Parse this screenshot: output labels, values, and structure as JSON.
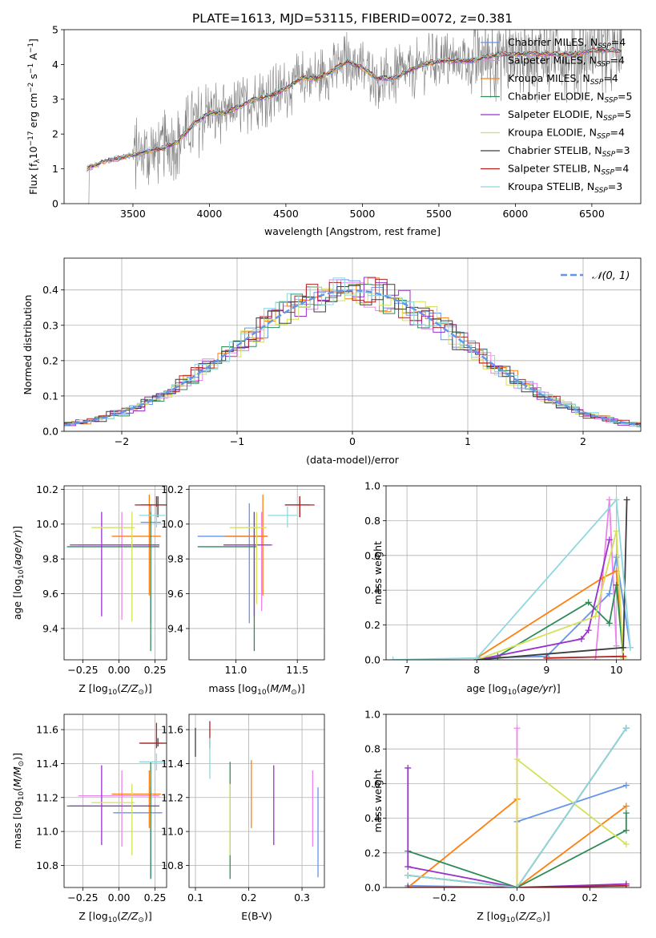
{
  "figure_title": "PLATE=1613, MJD=53115, FIBERID=0072, z=0.381",
  "chart_data": [
    {
      "id": "spectrum",
      "type": "line",
      "xlabel": "wavelength [Angstrom, rest frame]",
      "ylabel": "Flux [f_λ10^-17 erg cm^-2 s^-1 A^-1]",
      "xlim": [
        3050,
        6820
      ],
      "ylim": [
        0,
        5
      ],
      "xticks": [
        3500,
        4000,
        4500,
        5000,
        5500,
        6000,
        6500
      ],
      "yticks": [
        0,
        1,
        2,
        3,
        4,
        5
      ],
      "grid": false,
      "legend_position": "top-right",
      "legend": [
        {
          "label": "Chabrier MILES, N_SSP=4",
          "color": "#6495ed"
        },
        {
          "label": "Salpeter MILES, N_SSP=4",
          "color": "#ee82ee"
        },
        {
          "label": "Kroupa MILES, N_SSP=4",
          "color": "#ff7f0e"
        },
        {
          "label": "Chabrier ELODIE, N_SSP=5",
          "color": "#2e8b57"
        },
        {
          "label": "Salpeter ELODIE, N_SSP=5",
          "color": "#9932cc"
        },
        {
          "label": "Kroupa ELODIE, N_SSP=4",
          "color": "#d4e157"
        },
        {
          "label": "Chabrier STELIB, N_SSP=3",
          "color": "#3d3d3d"
        },
        {
          "label": "Salpeter STELIB, N_SSP=4",
          "color": "#b22222"
        },
        {
          "label": "Kroupa STELIB, N_SSP=3",
          "color": "#8fd8e0"
        }
      ],
      "data_envelope": {
        "x": [
          3200,
          3300,
          3400,
          3500,
          3600,
          3700,
          3800,
          3900,
          4000,
          4100,
          4200,
          4300,
          4400,
          4500,
          4600,
          4700,
          4800,
          4900,
          5000,
          5100,
          5200,
          5300,
          5400,
          5500,
          5600,
          5700,
          5800,
          5900,
          6000,
          6100,
          6200,
          6300,
          6400,
          6500,
          6600,
          6700
        ],
        "y": [
          1.0,
          1.2,
          1.3,
          1.4,
          1.5,
          1.6,
          1.8,
          2.3,
          2.6,
          2.6,
          2.8,
          3.0,
          3.1,
          3.3,
          3.6,
          3.6,
          3.8,
          4.1,
          3.9,
          3.6,
          3.6,
          3.8,
          4.0,
          4.1,
          4.1,
          4.1,
          4.2,
          4.3,
          4.3,
          4.3,
          4.3,
          4.3,
          4.3,
          4.4,
          4.4,
          4.4
        ]
      }
    },
    {
      "id": "residuals",
      "type": "histogram",
      "xlabel": "(data-model)/error",
      "ylabel": "Normed distribution",
      "xlim": [
        -2.5,
        2.5
      ],
      "ylim": [
        0,
        0.49
      ],
      "xticks": [
        -2,
        -1,
        0,
        1,
        2
      ],
      "yticks": [
        0.0,
        0.1,
        0.2,
        0.3,
        0.4
      ],
      "grid": true,
      "legend_position": "top-right",
      "reference_curve": {
        "label": "𝒩(0, 1)",
        "mean": 0,
        "sigma": 1,
        "color": "#6495ed",
        "style": "dashed"
      },
      "bin_width": 0.1
    },
    {
      "id": "age_vs_Z",
      "type": "errorbar",
      "xlabel": "Z [log10(Z/Z⊙)]",
      "ylabel": "age [log10(age/yr)]",
      "xlim": [
        -0.38,
        0.33
      ],
      "ylim": [
        9.22,
        10.22
      ],
      "xticks": [
        -0.25,
        0.0,
        0.25
      ],
      "xticklabels": [
        "−0.25",
        "0.00",
        "0.25"
      ],
      "yticks": [
        9.4,
        9.6,
        9.8,
        10.0,
        10.2
      ],
      "grid": true,
      "points": [
        {
          "color": "#6495ed",
          "x": 0.22,
          "xerr": [
            0.07,
            0.07
          ],
          "y": 10.01,
          "yerr": [
            0.58,
            0.1
          ]
        },
        {
          "color": "#ee82ee",
          "x": 0.02,
          "xerr": [
            0.3,
            0.26
          ],
          "y": 9.88,
          "yerr": [
            0.43,
            0.19
          ]
        },
        {
          "color": "#ff7f0e",
          "x": 0.21,
          "xerr": [
            0.26,
            0.08
          ],
          "y": 9.93,
          "yerr": [
            0.34,
            0.24
          ]
        },
        {
          "color": "#2e8b57",
          "x": 0.22,
          "xerr": [
            0.58,
            0.06
          ],
          "y": 9.87,
          "yerr": [
            0.6,
            0.2
          ]
        },
        {
          "color": "#9932cc",
          "x": -0.12,
          "xerr": [
            0.22,
            0.4
          ],
          "y": 9.88,
          "yerr": [
            0.41,
            0.19
          ]
        },
        {
          "color": "#d4e157",
          "x": 0.09,
          "xerr": [
            0.28,
            0.02
          ],
          "y": 9.98,
          "yerr": [
            0.54,
            0.09
          ]
        },
        {
          "color": "#3d3d3d",
          "x": 0.27,
          "xerr": [
            0.12,
            0.06
          ],
          "y": 10.11,
          "yerr": [
            0.07,
            0.05
          ]
        },
        {
          "color": "#b22222",
          "x": 0.26,
          "xerr": [
            0.15,
            0.05
          ],
          "y": 10.11,
          "yerr": [
            0.07,
            0.05
          ]
        },
        {
          "color": "#8fd8e0",
          "x": 0.26,
          "xerr": [
            0.12,
            0.06
          ],
          "y": 10.05,
          "yerr": [
            0.07,
            0.05
          ]
        }
      ]
    },
    {
      "id": "age_vs_mass",
      "type": "errorbar",
      "xlabel": "mass [log10(M/M⊙)]",
      "ylabel": "",
      "xlim": [
        10.62,
        11.72
      ],
      "ylim": [
        9.22,
        10.22
      ],
      "xticks": [
        11.0,
        11.5
      ],
      "xticklabels": [
        "11.0",
        "11.5"
      ],
      "yticks": [
        9.4,
        9.6,
        9.8,
        10.0,
        10.2
      ],
      "grid": true,
      "points": [
        {
          "color": "#6495ed",
          "x": 11.11,
          "xerr": [
            0.42,
            0.14
          ],
          "y": 9.93,
          "yerr": [
            0.5,
            0.19
          ]
        },
        {
          "color": "#ee82ee",
          "x": 11.21,
          "xerr": [
            0.31,
            0.09
          ],
          "y": 9.88,
          "yerr": [
            0.38,
            0.19
          ]
        },
        {
          "color": "#ff7f0e",
          "x": 11.22,
          "xerr": [
            0.31,
            0.04
          ],
          "y": 9.93,
          "yerr": [
            0.34,
            0.24
          ]
        },
        {
          "color": "#2e8b57",
          "x": 11.15,
          "xerr": [
            0.46,
            0.02
          ],
          "y": 9.87,
          "yerr": [
            0.6,
            0.2
          ]
        },
        {
          "color": "#9932cc",
          "x": 11.15,
          "xerr": [
            0.25,
            0.14
          ],
          "y": 9.88,
          "yerr": [
            0.41,
            0.19
          ]
        },
        {
          "color": "#d4e157",
          "x": 11.17,
          "xerr": [
            0.22,
            0.08
          ],
          "y": 9.98,
          "yerr": [
            0.44,
            0.09
          ]
        },
        {
          "color": "#3d3d3d",
          "x": 11.52,
          "xerr": [
            0.12,
            0.08
          ],
          "y": 10.11,
          "yerr": [
            0.07,
            0.05
          ]
        },
        {
          "color": "#b22222",
          "x": 11.52,
          "xerr": [
            0.12,
            0.12
          ],
          "y": 10.11,
          "yerr": [
            0.07,
            0.05
          ]
        },
        {
          "color": "#8fd8e0",
          "x": 11.42,
          "xerr": [
            0.16,
            0.08
          ],
          "y": 10.05,
          "yerr": [
            0.07,
            0.05
          ]
        }
      ]
    },
    {
      "id": "age_weights",
      "type": "line",
      "xlabel": "age [log10(age/yr)]",
      "ylabel": "mass weight",
      "xlim": [
        6.7,
        10.35
      ],
      "ylim": [
        0,
        1
      ],
      "xticks": [
        7,
        8,
        9,
        10
      ],
      "yticks": [
        0.0,
        0.2,
        0.4,
        0.6,
        0.8,
        1.0
      ],
      "grid": true,
      "series": [
        {
          "color": "#6495ed",
          "x": [
            8.0,
            9.0,
            9.9,
            10.0,
            10.2
          ],
          "y": [
            0.01,
            0.02,
            0.38,
            0.59,
            0.07
          ]
        },
        {
          "color": "#ee82ee",
          "x": [
            9.7,
            9.9,
            10.0
          ],
          "y": [
            0.0,
            0.92,
            0.08
          ]
        },
        {
          "color": "#ff7f0e",
          "x": [
            8.0,
            9.8,
            10.0,
            10.1
          ],
          "y": [
            0.01,
            0.47,
            0.51,
            0.02
          ]
        },
        {
          "color": "#2e8b57",
          "x": [
            8.3,
            9.6,
            9.9,
            10.0,
            10.1
          ],
          "y": [
            0.02,
            0.33,
            0.21,
            0.43,
            0.01
          ]
        },
        {
          "color": "#9932cc",
          "x": [
            8.0,
            9.5,
            9.6,
            9.9
          ],
          "y": [
            0.0,
            0.12,
            0.17,
            0.69
          ]
        },
        {
          "color": "#d4e157",
          "x": [
            8.0,
            9.7,
            10.0,
            10.1
          ],
          "y": [
            0.0,
            0.25,
            0.74,
            0.01
          ]
        },
        {
          "color": "#3d3d3d",
          "x": [
            8.0,
            10.1,
            10.15
          ],
          "y": [
            0.0,
            0.07,
            0.92
          ]
        },
        {
          "color": "#b22222",
          "x": [
            9.0,
            10.1
          ],
          "y": [
            0.01,
            0.02
          ]
        },
        {
          "color": "#8fd8e0",
          "x": [
            6.8,
            8.0,
            10.0,
            10.2
          ],
          "y": [
            0.0,
            0.01,
            0.92,
            0.07
          ]
        }
      ]
    },
    {
      "id": "mass_vs_Z",
      "type": "errorbar",
      "xlabel": "Z [log10(Z/Z⊙)]",
      "ylabel": "mass [log10(M/M⊙)]",
      "xlim": [
        -0.38,
        0.33
      ],
      "ylim": [
        10.67,
        11.69
      ],
      "xticks": [
        -0.25,
        0.0,
        0.25
      ],
      "xticklabels": [
        "−0.25",
        "0.00",
        "0.25"
      ],
      "yticks": [
        10.8,
        11.0,
        11.2,
        11.4,
        11.6
      ],
      "grid": true,
      "points": [
        {
          "color": "#6495ed",
          "x": 0.22,
          "xerr": [
            0.26,
            0.08
          ],
          "y": 11.11,
          "yerr": [
            0.38,
            0.15
          ]
        },
        {
          "color": "#ee82ee",
          "x": 0.02,
          "xerr": [
            0.3,
            0.26
          ],
          "y": 11.21,
          "yerr": [
            0.3,
            0.15
          ]
        },
        {
          "color": "#ff7f0e",
          "x": 0.21,
          "xerr": [
            0.26,
            0.08
          ],
          "y": 11.22,
          "yerr": [
            0.2,
            0.14
          ]
        },
        {
          "color": "#2e8b57",
          "x": 0.22,
          "xerr": [
            0.58,
            0.06
          ],
          "y": 11.15,
          "yerr": [
            0.43,
            0.26
          ]
        },
        {
          "color": "#9932cc",
          "x": -0.12,
          "xerr": [
            0.22,
            0.4
          ],
          "y": 11.15,
          "yerr": [
            0.23,
            0.24
          ]
        },
        {
          "color": "#d4e157",
          "x": 0.09,
          "xerr": [
            0.28,
            0.02
          ],
          "y": 11.17,
          "yerr": [
            0.31,
            0.11
          ]
        },
        {
          "color": "#3d3d3d",
          "x": 0.27,
          "xerr": [
            0.12,
            0.06
          ],
          "y": 11.52,
          "yerr": [
            0.02,
            0.03
          ]
        },
        {
          "color": "#b22222",
          "x": 0.26,
          "xerr": [
            0.12,
            0.05
          ],
          "y": 11.52,
          "yerr": [
            0.03,
            0.12
          ]
        },
        {
          "color": "#8fd8e0",
          "x": 0.26,
          "xerr": [
            0.12,
            0.06
          ],
          "y": 11.41,
          "yerr": [
            0.05,
            0.05
          ]
        }
      ]
    },
    {
      "id": "mass_vs_ebv",
      "type": "errorbar",
      "xlabel": "E(B-V)",
      "ylabel": "",
      "xlim": [
        0.088,
        0.342
      ],
      "ylim": [
        10.67,
        11.69
      ],
      "xticks": [
        0.1,
        0.2,
        0.3
      ],
      "xticklabels": [
        "0.1",
        "0.2",
        "0.3"
      ],
      "yticks": [
        10.8,
        11.0,
        11.2,
        11.4,
        11.6
      ],
      "grid": true,
      "points": [
        {
          "color": "#6495ed",
          "x": 0.33,
          "y": 11.11,
          "yerr": [
            0.38,
            0.15
          ]
        },
        {
          "color": "#ee82ee",
          "x": 0.32,
          "y": 11.21,
          "yerr": [
            0.3,
            0.15
          ]
        },
        {
          "color": "#ff7f0e",
          "x": 0.205,
          "y": 11.22,
          "yerr": [
            0.2,
            0.2
          ]
        },
        {
          "color": "#2e8b57",
          "x": 0.165,
          "y": 11.15,
          "yerr": [
            0.43,
            0.26
          ]
        },
        {
          "color": "#9932cc",
          "x": 0.247,
          "y": 11.15,
          "yerr": [
            0.23,
            0.24
          ]
        },
        {
          "color": "#d4e157",
          "x": 0.165,
          "y": 11.17,
          "yerr": [
            0.31,
            0.11
          ]
        },
        {
          "color": "#3d3d3d",
          "x": 0.1,
          "y": 11.52,
          "yerr": [
            0.08,
            0.09
          ]
        },
        {
          "color": "#b22222",
          "x": 0.127,
          "y": 11.52,
          "yerr": [
            0.03,
            0.13
          ]
        },
        {
          "color": "#8fd8e0",
          "x": 0.127,
          "y": 11.41,
          "yerr": [
            0.1,
            0.14
          ]
        }
      ]
    },
    {
      "id": "Z_weights",
      "type": "line",
      "xlabel": "Z [log10(Z/Z⊙)]",
      "ylabel": "mass weight",
      "xlim": [
        -0.36,
        0.34
      ],
      "ylim": [
        0,
        1
      ],
      "xticks": [
        -0.2,
        0.0,
        0.2
      ],
      "xticklabels": [
        "−0.2",
        "0.0",
        "0.2"
      ],
      "yticks": [
        0.0,
        0.2,
        0.4,
        0.6,
        0.8,
        1.0
      ],
      "grid": true,
      "series": [
        {
          "color": "#6495ed",
          "x": [
            -0.3,
            0.0,
            0.0,
            0.3
          ],
          "y": [
            0.01,
            0.0,
            0.38,
            0.59
          ]
        },
        {
          "color": "#ee82ee",
          "x": [
            0.0,
            0.0
          ],
          "y": [
            0.0,
            0.92
          ]
        },
        {
          "color": "#ff7f0e",
          "x": [
            -0.3,
            0.0,
            0.0,
            0.3
          ],
          "y": [
            0.0,
            0.51,
            0.0,
            0.47
          ]
        },
        {
          "color": "#2e8b57",
          "x": [
            -0.3,
            0.0,
            0.3,
            0.3
          ],
          "y": [
            0.21,
            0.0,
            0.33,
            0.43
          ]
        },
        {
          "color": "#9932cc",
          "x": [
            -0.3,
            -0.3,
            0.0,
            0.3
          ],
          "y": [
            0.69,
            0.12,
            0.0,
            0.02
          ]
        },
        {
          "color": "#d4e157",
          "x": [
            -0.3,
            0.0,
            0.0,
            0.3
          ],
          "y": [
            0.07,
            0.0,
            0.74,
            0.25
          ]
        },
        {
          "color": "#3d3d3d",
          "x": [
            -0.3,
            0.0,
            0.3
          ],
          "y": [
            0.07,
            0.0,
            0.92
          ]
        },
        {
          "color": "#b22222",
          "x": [
            -0.3,
            0.0,
            0.3
          ],
          "y": [
            0.0,
            0.0,
            0.01
          ]
        },
        {
          "color": "#8fd8e0",
          "x": [
            -0.3,
            0.0,
            0.3
          ],
          "y": [
            0.07,
            0.0,
            0.92
          ]
        }
      ]
    }
  ]
}
